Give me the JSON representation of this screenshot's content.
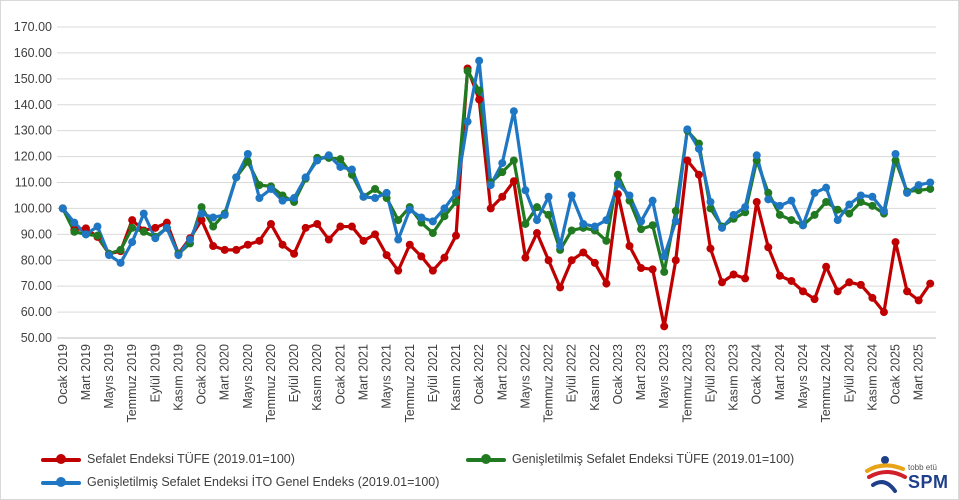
{
  "chart_data": {
    "type": "line",
    "ylim": [
      50,
      170
    ],
    "yticks": [
      "50.00",
      "60.00",
      "70.00",
      "80.00",
      "90.00",
      "100.00",
      "110.00",
      "120.00",
      "130.00",
      "140.00",
      "150.00",
      "160.00",
      "170.00"
    ],
    "categories": [
      "Ocak 2019",
      "Şubat 2019",
      "Mart 2019",
      "Nisan 2019",
      "Mayıs 2019",
      "Haziran 2019",
      "Temmuz 2019",
      "Ağustos 2019",
      "Eylül 2019",
      "Ekim 2019",
      "Kasım 2019",
      "Aralık 2019",
      "Ocak 2020",
      "Şubat 2020",
      "Mart 2020",
      "Nisan 2020",
      "Mayıs 2020",
      "Haziran 2020",
      "Temmuz 2020",
      "Ağustos 2020",
      "Eylül 2020",
      "Ekim 2020",
      "Kasım 2020",
      "Aralık 2020",
      "Ocak 2021",
      "Şubat 2021",
      "Mart 2021",
      "Nisan 2021",
      "Mayıs 2021",
      "Haziran 2021",
      "Temmuz 2021",
      "Ağustos 2021",
      "Eylül 2021",
      "Ekim 2021",
      "Kasım 2021",
      "Aralık 2021",
      "Ocak 2022",
      "Şubat 2022",
      "Mart 2022",
      "Nisan 2022",
      "Mayıs 2022",
      "Haziran 2022",
      "Temmuz 2022",
      "Ağustos 2022",
      "Eylül 2022",
      "Ekim 2022",
      "Kasım 2022",
      "Aralık 2022",
      "Ocak 2023",
      "Şubat 2023",
      "Mart 2023",
      "Nisan 2023",
      "Mayıs 2023",
      "Haziran 2023",
      "Temmuz 2023",
      "Ağustos 2023",
      "Eylül 2023",
      "Ekim 2023",
      "Kasım 2023",
      "Aralık 2023",
      "Ocak 2024",
      "Şubat 2024",
      "Mart 2024",
      "Nisan 2024",
      "Mayıs 2024",
      "Haziran 2024",
      "Temmuz 2024",
      "Ağustos 2024",
      "Eylül 2024",
      "Ekim 2024",
      "Kasım 2024",
      "Aralık 2024",
      "Ocak 2025",
      "Şubat 2025",
      "Mart 2025",
      "Nisan 2025"
    ],
    "x_tick_labels": [
      "Ocak 2019",
      "Mart 2019",
      "Mayıs 2019",
      "Temmuz 2019",
      "Eylül 2019",
      "Kasım 2019",
      "Ocak 2020",
      "Mart 2020",
      "Mayıs 2020",
      "Temmuz 2020",
      "Eylül 2020",
      "Kasım 2020",
      "Ocak 2021",
      "Mart 2021",
      "Mayıs 2021",
      "Temmuz 2021",
      "Eylül 2021",
      "Kasım 2021",
      "Ocak 2022",
      "Mart 2022",
      "Mayıs 2022",
      "Temmuz 2022",
      "Eylül 2022",
      "Kasım 2022",
      "Ocak 2023",
      "Mart 2023",
      "Mayıs 2023",
      "Temmuz 2023",
      "Eylül 2023",
      "Kasım 2023",
      "Ocak 2024",
      "Mart 2024",
      "Mayıs 2024",
      "Temmuz 2024",
      "Eylül 2024",
      "Kasım 2024",
      "Ocak 2025",
      "Mart 2025"
    ],
    "grid": "horizontal",
    "legend_position": "bottom",
    "series": [
      {
        "name": "Sefalet Endeksi TÜFE (2019.01=100)",
        "color": "#c00000",
        "values": [
          100.0,
          91.8,
          92.3,
          89.0,
          82.5,
          83.5,
          95.5,
          91.5,
          92.5,
          94.5,
          82.5,
          88.5,
          95.5,
          85.5,
          84.0,
          84.0,
          86.0,
          87.5,
          94.0,
          86.0,
          82.5,
          92.5,
          94.0,
          88.0,
          93.0,
          93.0,
          87.5,
          90.0,
          82.0,
          76.0,
          86.0,
          81.5,
          76.0,
          81.0,
          89.5,
          154.0,
          142.0,
          100.0,
          104.5,
          110.5,
          81.0,
          90.5,
          80.0,
          69.5,
          80.0,
          83.0,
          79.0,
          71.0,
          105.5,
          85.5,
          77.0,
          76.5,
          54.5,
          80.0,
          118.5,
          113.0,
          84.5,
          71.5,
          74.5,
          73.0,
          102.5,
          85.0,
          74.0,
          72.0,
          68.0,
          65.0,
          77.5,
          68.0,
          71.5,
          70.5,
          65.5,
          60.0,
          87.0,
          68.0,
          64.5,
          71.0
        ]
      },
      {
        "name": "Genişletilmiş Sefalet Endeksi TÜFE (2019.01=100)",
        "color": "#217a21",
        "values": [
          100.0,
          91.0,
          90.0,
          89.5,
          82.5,
          84.0,
          92.5,
          91.0,
          89.0,
          92.5,
          82.5,
          86.5,
          100.5,
          93.0,
          98.0,
          112.0,
          118.0,
          109.0,
          108.5,
          105.0,
          102.5,
          111.5,
          119.5,
          119.5,
          119.0,
          113.0,
          104.5,
          107.5,
          104.0,
          95.5,
          100.5,
          94.5,
          90.5,
          97.0,
          102.5,
          153.0,
          145.5,
          110.0,
          114.0,
          118.5,
          94.0,
          100.5,
          97.5,
          84.0,
          91.5,
          92.5,
          91.5,
          87.5,
          113.0,
          103.0,
          92.0,
          93.5,
          75.5,
          99.0,
          130.0,
          125.0,
          100.0,
          93.0,
          96.0,
          98.5,
          118.5,
          106.0,
          97.5,
          95.5,
          93.5,
          97.5,
          102.5,
          99.5,
          98.0,
          102.5,
          101.0,
          98.0,
          118.5,
          106.5,
          107.0,
          107.5
        ]
      },
      {
        "name": "Genişletilmiş Sefalet Endeksi İTO Genel Endeks (2019.01=100)",
        "color": "#1f77c4",
        "values": [
          100.0,
          94.5,
          90.0,
          93.0,
          82.0,
          79.0,
          87.0,
          98.0,
          88.5,
          92.5,
          82.0,
          88.0,
          98.0,
          96.5,
          97.5,
          112.0,
          121.0,
          104.0,
          107.5,
          103.0,
          104.0,
          112.0,
          118.5,
          120.5,
          116.0,
          115.0,
          104.5,
          104.0,
          106.0,
          88.0,
          99.5,
          96.5,
          95.0,
          100.0,
          106.0,
          133.5,
          157.0,
          109.0,
          117.5,
          137.5,
          107.0,
          95.5,
          104.5,
          85.5,
          105.0,
          94.0,
          93.0,
          95.5,
          109.5,
          105.0,
          95.0,
          103.0,
          81.5,
          95.0,
          130.5,
          123.0,
          102.5,
          92.5,
          97.5,
          100.5,
          120.5,
          103.5,
          101.0,
          103.0,
          93.5,
          106.0,
          108.0,
          95.5,
          101.5,
          105.0,
          104.5,
          99.0,
          121.0,
          106.0,
          109.0,
          110.0
        ]
      }
    ]
  },
  "logo": {
    "small_text": "tobb etü",
    "big_text": "SPM"
  }
}
